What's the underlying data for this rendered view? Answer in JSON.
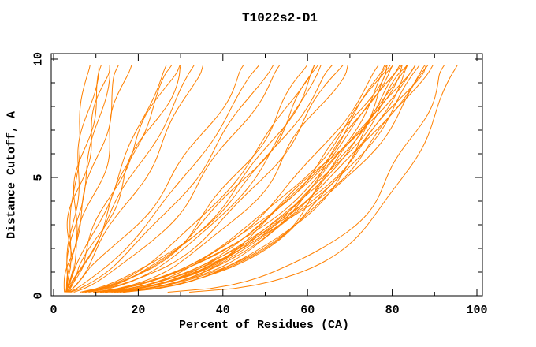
{
  "title": "T1022s2-D1",
  "axes": {
    "xlabel": "Percent of Residues (CA)",
    "ylabel": "Distance Cutoff, A",
    "x_tick_labels": [
      "0",
      "20",
      "40",
      "60",
      "80",
      "100"
    ],
    "x_ticks_major": [
      0,
      20,
      40,
      60,
      80,
      100
    ],
    "x_ticks_minor": [
      10,
      30,
      50,
      70,
      90
    ],
    "y_tick_labels": [
      "0",
      "5",
      "10"
    ],
    "y_ticks_major": [
      0,
      5,
      10
    ],
    "y_ticks_minor": [
      1,
      2,
      3,
      4,
      6,
      7,
      8,
      9
    ],
    "x_range": [
      0,
      102
    ],
    "y_range": [
      0,
      10.25
    ]
  },
  "colors": {
    "curve": "#ff8000",
    "axis": "#000000",
    "background": "#ffffff"
  },
  "chart_data": {
    "type": "line",
    "title": "T1022s2-D1",
    "xlabel": "Percent of Residues (CA)",
    "ylabel": "Distance Cutoff, A",
    "xlim": [
      0,
      102
    ],
    "ylim": [
      0,
      10.25
    ],
    "grid": false,
    "legend": null,
    "n_curves": 47,
    "cutoff_min": 0.1,
    "cutoff_max": 9.9,
    "series_model": "percent(cutoff) = start_percent + (end_percent - start_percent) * ((cutoff - 0.1) / 9.8) ^ shape; one curve per predicted model, estimated from plot",
    "curves": [
      {
        "start_percent": 3.0,
        "end_percent": 8.7,
        "shape": 1.45
      },
      {
        "start_percent": 2.8,
        "end_percent": 10.7,
        "shape": 1.38
      },
      {
        "start_percent": 3.1,
        "end_percent": 11.7,
        "shape": 1.32
      },
      {
        "start_percent": 2.9,
        "end_percent": 12.6,
        "shape": 1.28
      },
      {
        "start_percent": 3.2,
        "end_percent": 13.3,
        "shape": 1.22
      },
      {
        "start_percent": 2.7,
        "end_percent": 16.1,
        "shape": 1.18
      },
      {
        "start_percent": 3.0,
        "end_percent": 18.5,
        "shape": 1.12
      },
      {
        "start_percent": 2.8,
        "end_percent": 27.2,
        "shape": 1.0
      },
      {
        "start_percent": 3.1,
        "end_percent": 28.7,
        "shape": 0.95
      },
      {
        "start_percent": 2.9,
        "end_percent": 29.6,
        "shape": 1.05
      },
      {
        "start_percent": 3.0,
        "end_percent": 30.2,
        "shape": 0.9
      },
      {
        "start_percent": 2.6,
        "end_percent": 33.7,
        "shape": 0.95
      },
      {
        "start_percent": 3.2,
        "end_percent": 35.2,
        "shape": 0.85
      },
      {
        "start_percent": 2.8,
        "end_percent": 45.9,
        "shape": 0.8
      },
      {
        "start_percent": 3.0,
        "end_percent": 49.4,
        "shape": 0.75
      },
      {
        "start_percent": 2.7,
        "end_percent": 52.2,
        "shape": 0.7
      },
      {
        "start_percent": 3.1,
        "end_percent": 54.3,
        "shape": 0.65
      },
      {
        "start_percent": 2.9,
        "end_percent": 60.2,
        "shape": 0.5
      },
      {
        "start_percent": 3.0,
        "end_percent": 61.5,
        "shape": 0.53
      },
      {
        "start_percent": 2.8,
        "end_percent": 62.3,
        "shape": 0.48
      },
      {
        "start_percent": 3.1,
        "end_percent": 63.0,
        "shape": 0.51
      },
      {
        "start_percent": 2.9,
        "end_percent": 63.5,
        "shape": 0.46
      },
      {
        "start_percent": 3.0,
        "end_percent": 67.0,
        "shape": 0.56
      },
      {
        "start_percent": 2.7,
        "end_percent": 68.9,
        "shape": 0.5
      },
      {
        "start_percent": 3.1,
        "end_percent": 69.4,
        "shape": 0.45
      },
      {
        "start_percent": 2.9,
        "end_percent": 77.4,
        "shape": 0.44
      },
      {
        "start_percent": 3.0,
        "end_percent": 78.2,
        "shape": 0.38
      },
      {
        "start_percent": 2.8,
        "end_percent": 78.9,
        "shape": 0.42
      },
      {
        "start_percent": 3.1,
        "end_percent": 79.5,
        "shape": 0.35
      },
      {
        "start_percent": 2.9,
        "end_percent": 80.1,
        "shape": 0.47
      },
      {
        "start_percent": 3.0,
        "end_percent": 80.7,
        "shape": 0.4
      },
      {
        "start_percent": 2.7,
        "end_percent": 81.3,
        "shape": 0.33
      },
      {
        "start_percent": 3.2,
        "end_percent": 81.9,
        "shape": 0.44
      },
      {
        "start_percent": 2.8,
        "end_percent": 82.5,
        "shape": 0.37
      },
      {
        "start_percent": 3.0,
        "end_percent": 83.1,
        "shape": 0.46
      },
      {
        "start_percent": 2.9,
        "end_percent": 83.7,
        "shape": 0.41
      },
      {
        "start_percent": 3.1,
        "end_percent": 84.3,
        "shape": 0.34
      },
      {
        "start_percent": 2.8,
        "end_percent": 84.9,
        "shape": 0.43
      },
      {
        "start_percent": 3.0,
        "end_percent": 85.5,
        "shape": 0.39
      },
      {
        "start_percent": 2.9,
        "end_percent": 86.2,
        "shape": 0.48
      },
      {
        "start_percent": 3.1,
        "end_percent": 86.9,
        "shape": 0.36
      },
      {
        "start_percent": 2.7,
        "end_percent": 87.6,
        "shape": 0.42
      },
      {
        "start_percent": 3.0,
        "end_percent": 88.4,
        "shape": 0.45
      },
      {
        "start_percent": 2.9,
        "end_percent": 89.2,
        "shape": 0.38
      },
      {
        "start_percent": 3.1,
        "end_percent": 90.0,
        "shape": 0.44
      },
      {
        "start_percent": 2.8,
        "end_percent": 93.5,
        "shape": 0.25
      },
      {
        "start_percent": 3.0,
        "end_percent": 95.8,
        "shape": 0.22
      }
    ]
  }
}
